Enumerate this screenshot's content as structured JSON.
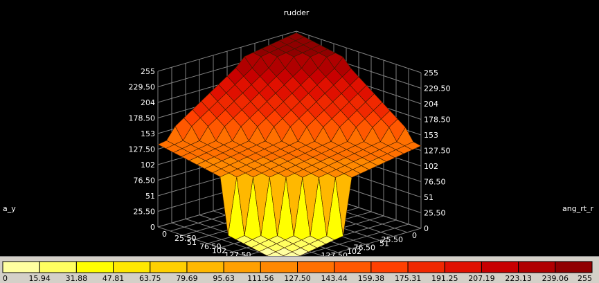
{
  "chart_data": {
    "type": "surface",
    "title": "rudder",
    "x_axis_label": "ang_rt_r",
    "y_axis_label": "a_y",
    "z_ticks": [
      "0",
      "25.50",
      "51",
      "76.50",
      "102",
      "127.50",
      "153",
      "178.50",
      "204",
      "229.50",
      "255"
    ],
    "y_ticks_left": [
      "0",
      "25.50",
      "51",
      "76.50",
      "102",
      "127.50",
      "153",
      "178.50",
      "204",
      "229.50",
      "255"
    ],
    "x_ticks_right": [
      "0",
      "25.50",
      "51",
      "76.50",
      "102",
      "127.50",
      "153",
      "178.50",
      "204",
      "229.50",
      "255"
    ],
    "range": [
      0,
      255
    ],
    "surface_description_values": {
      "low_corner_value": 0,
      "mid_plateau_value": 127.5,
      "high_corner_value": 255
    },
    "colorbar_ticks": [
      "0",
      "15.94",
      "31.88",
      "47.81",
      "63.75",
      "79.69",
      "95.63",
      "111.56",
      "127.50",
      "143.44",
      "159.38",
      "175.31",
      "191.25",
      "207.19",
      "223.13",
      "239.06",
      "255"
    ],
    "colorbar_colors": [
      "#ffffa0",
      "#ffff60",
      "#ffff00",
      "#ffe800",
      "#ffd000",
      "#ffb800",
      "#ffa000",
      "#ff8800",
      "#ff7000",
      "#ff5800",
      "#ff4000",
      "#f02800",
      "#e01000",
      "#c80000",
      "#b00000",
      "#900000"
    ],
    "colors": {
      "background": "#000000",
      "grid": "#808080",
      "marker": "#ff0000",
      "panel": "#d4d0c8"
    }
  }
}
